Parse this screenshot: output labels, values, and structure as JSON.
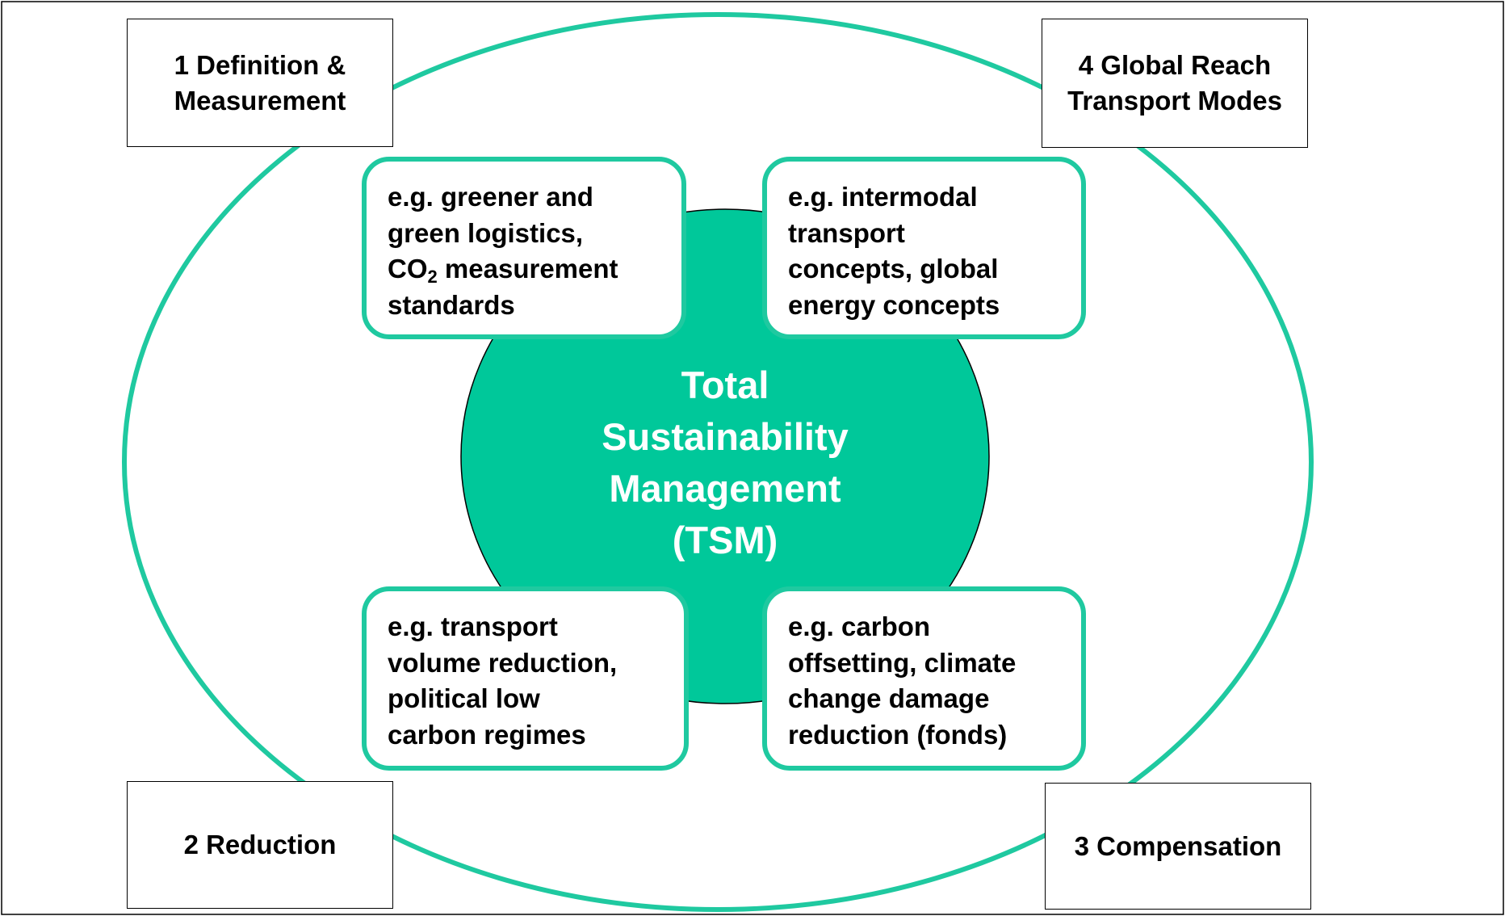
{
  "center": {
    "lines": [
      "Total",
      "Sustainability",
      "Management",
      "(TSM)"
    ]
  },
  "corners": [
    {
      "lines": [
        "1 Definition &",
        "Measurement"
      ]
    },
    {
      "lines": [
        "4 Global Reach",
        "Transport Modes"
      ]
    },
    {
      "lines": [
        "2 Reduction"
      ]
    },
    {
      "lines": [
        "3 Compensation"
      ]
    }
  ],
  "examples": [
    {
      "lines": [
        "e.g. greener and",
        "green logistics,",
        [
          "CO",
          "2",
          " measurement"
        ],
        "standards"
      ]
    },
    {
      "lines": [
        "e.g. intermodal",
        "transport",
        "concepts, global",
        "energy concepts"
      ]
    },
    {
      "lines": [
        "e.g. transport",
        "volume reduction,",
        "political low",
        "carbon regimes"
      ]
    },
    {
      "lines": [
        "e.g. carbon",
        "offsetting, climate",
        "change damage",
        "reduction (fonds)"
      ]
    }
  ]
}
